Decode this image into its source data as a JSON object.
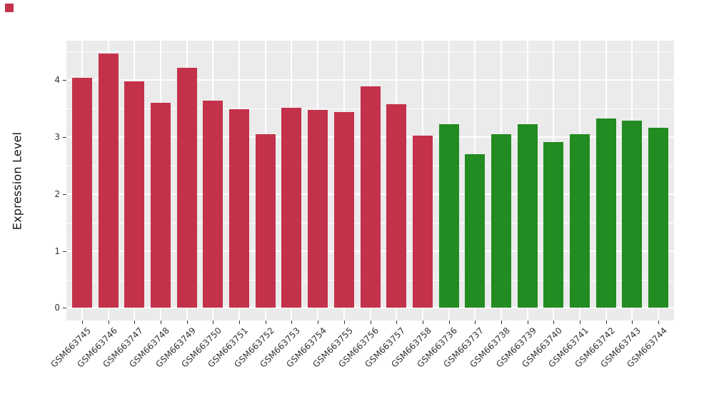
{
  "marker": {
    "color": "#C4314B"
  },
  "chart_data": {
    "type": "bar",
    "title": "",
    "xlabel": "",
    "ylabel": "Expression Level",
    "ylim": [
      -0.22,
      4.69
    ],
    "yticks": [
      0,
      1,
      2,
      3,
      4
    ],
    "ytick_labels": [
      "0",
      "1",
      "2",
      "3",
      "4"
    ],
    "minor_yticks": [
      0.5,
      1.5,
      2.5,
      3.5,
      4.5
    ],
    "grid": true,
    "legend_position": "none",
    "panel_bg": "#EBEBEB",
    "grid_color": "#FFFFFF",
    "categories": [
      "GSM663745",
      "GSM663746",
      "GSM663747",
      "GSM663748",
      "GSM663749",
      "GSM663750",
      "GSM663751",
      "GSM663752",
      "GSM663753",
      "GSM663754",
      "GSM663755",
      "GSM663756",
      "GSM663757",
      "GSM663758",
      "GSM663736",
      "GSM663737",
      "GSM663738",
      "GSM663739",
      "GSM663740",
      "GSM663741",
      "GSM663742",
      "GSM663743",
      "GSM663744"
    ],
    "values": [
      4.04,
      4.47,
      3.97,
      3.6,
      4.21,
      3.64,
      3.49,
      3.05,
      3.51,
      3.47,
      3.44,
      3.89,
      3.57,
      3.02,
      3.22,
      2.7,
      3.05,
      3.22,
      2.91,
      3.05,
      3.33,
      3.29,
      3.16
    ],
    "bar_groups": [
      "red",
      "red",
      "red",
      "red",
      "red",
      "red",
      "red",
      "red",
      "red",
      "red",
      "red",
      "red",
      "red",
      "red",
      "green",
      "green",
      "green",
      "green",
      "green",
      "green",
      "green",
      "green",
      "green"
    ],
    "group_colors": {
      "red": "#C4314B",
      "green": "#228B22"
    }
  }
}
